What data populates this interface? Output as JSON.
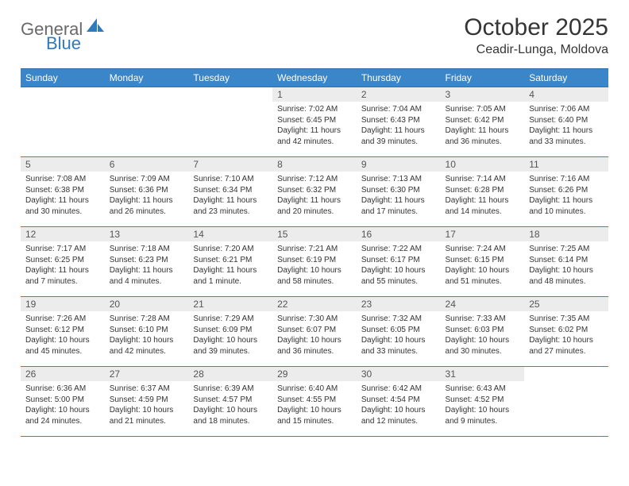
{
  "branding": {
    "logo_text_gray": "General",
    "logo_text_blue": "Blue",
    "logo_color_gray": "#6a6a6a",
    "logo_color_blue": "#2f79bd"
  },
  "header": {
    "title": "October 2025",
    "location": "Ceadir-Lunga, Moldova"
  },
  "style": {
    "header_bg": "#3a86c8",
    "header_fg": "#ffffff",
    "daynum_bg": "#ececec",
    "border_color": "#3a86c8",
    "body_font_size": 10,
    "header_font_size": 12,
    "title_font_size": 30,
    "location_font_size": 16
  },
  "weekdays": [
    "Sunday",
    "Monday",
    "Tuesday",
    "Wednesday",
    "Thursday",
    "Friday",
    "Saturday"
  ],
  "weeks": [
    [
      {
        "day": "",
        "sunrise": "",
        "sunset": "",
        "daylight": ""
      },
      {
        "day": "",
        "sunrise": "",
        "sunset": "",
        "daylight": ""
      },
      {
        "day": "",
        "sunrise": "",
        "sunset": "",
        "daylight": ""
      },
      {
        "day": "1",
        "sunrise": "Sunrise: 7:02 AM",
        "sunset": "Sunset: 6:45 PM",
        "daylight": "Daylight: 11 hours and 42 minutes."
      },
      {
        "day": "2",
        "sunrise": "Sunrise: 7:04 AM",
        "sunset": "Sunset: 6:43 PM",
        "daylight": "Daylight: 11 hours and 39 minutes."
      },
      {
        "day": "3",
        "sunrise": "Sunrise: 7:05 AM",
        "sunset": "Sunset: 6:42 PM",
        "daylight": "Daylight: 11 hours and 36 minutes."
      },
      {
        "day": "4",
        "sunrise": "Sunrise: 7:06 AM",
        "sunset": "Sunset: 6:40 PM",
        "daylight": "Daylight: 11 hours and 33 minutes."
      }
    ],
    [
      {
        "day": "5",
        "sunrise": "Sunrise: 7:08 AM",
        "sunset": "Sunset: 6:38 PM",
        "daylight": "Daylight: 11 hours and 30 minutes."
      },
      {
        "day": "6",
        "sunrise": "Sunrise: 7:09 AM",
        "sunset": "Sunset: 6:36 PM",
        "daylight": "Daylight: 11 hours and 26 minutes."
      },
      {
        "day": "7",
        "sunrise": "Sunrise: 7:10 AM",
        "sunset": "Sunset: 6:34 PM",
        "daylight": "Daylight: 11 hours and 23 minutes."
      },
      {
        "day": "8",
        "sunrise": "Sunrise: 7:12 AM",
        "sunset": "Sunset: 6:32 PM",
        "daylight": "Daylight: 11 hours and 20 minutes."
      },
      {
        "day": "9",
        "sunrise": "Sunrise: 7:13 AM",
        "sunset": "Sunset: 6:30 PM",
        "daylight": "Daylight: 11 hours and 17 minutes."
      },
      {
        "day": "10",
        "sunrise": "Sunrise: 7:14 AM",
        "sunset": "Sunset: 6:28 PM",
        "daylight": "Daylight: 11 hours and 14 minutes."
      },
      {
        "day": "11",
        "sunrise": "Sunrise: 7:16 AM",
        "sunset": "Sunset: 6:26 PM",
        "daylight": "Daylight: 11 hours and 10 minutes."
      }
    ],
    [
      {
        "day": "12",
        "sunrise": "Sunrise: 7:17 AM",
        "sunset": "Sunset: 6:25 PM",
        "daylight": "Daylight: 11 hours and 7 minutes."
      },
      {
        "day": "13",
        "sunrise": "Sunrise: 7:18 AM",
        "sunset": "Sunset: 6:23 PM",
        "daylight": "Daylight: 11 hours and 4 minutes."
      },
      {
        "day": "14",
        "sunrise": "Sunrise: 7:20 AM",
        "sunset": "Sunset: 6:21 PM",
        "daylight": "Daylight: 11 hours and 1 minute."
      },
      {
        "day": "15",
        "sunrise": "Sunrise: 7:21 AM",
        "sunset": "Sunset: 6:19 PM",
        "daylight": "Daylight: 10 hours and 58 minutes."
      },
      {
        "day": "16",
        "sunrise": "Sunrise: 7:22 AM",
        "sunset": "Sunset: 6:17 PM",
        "daylight": "Daylight: 10 hours and 55 minutes."
      },
      {
        "day": "17",
        "sunrise": "Sunrise: 7:24 AM",
        "sunset": "Sunset: 6:15 PM",
        "daylight": "Daylight: 10 hours and 51 minutes."
      },
      {
        "day": "18",
        "sunrise": "Sunrise: 7:25 AM",
        "sunset": "Sunset: 6:14 PM",
        "daylight": "Daylight: 10 hours and 48 minutes."
      }
    ],
    [
      {
        "day": "19",
        "sunrise": "Sunrise: 7:26 AM",
        "sunset": "Sunset: 6:12 PM",
        "daylight": "Daylight: 10 hours and 45 minutes."
      },
      {
        "day": "20",
        "sunrise": "Sunrise: 7:28 AM",
        "sunset": "Sunset: 6:10 PM",
        "daylight": "Daylight: 10 hours and 42 minutes."
      },
      {
        "day": "21",
        "sunrise": "Sunrise: 7:29 AM",
        "sunset": "Sunset: 6:09 PM",
        "daylight": "Daylight: 10 hours and 39 minutes."
      },
      {
        "day": "22",
        "sunrise": "Sunrise: 7:30 AM",
        "sunset": "Sunset: 6:07 PM",
        "daylight": "Daylight: 10 hours and 36 minutes."
      },
      {
        "day": "23",
        "sunrise": "Sunrise: 7:32 AM",
        "sunset": "Sunset: 6:05 PM",
        "daylight": "Daylight: 10 hours and 33 minutes."
      },
      {
        "day": "24",
        "sunrise": "Sunrise: 7:33 AM",
        "sunset": "Sunset: 6:03 PM",
        "daylight": "Daylight: 10 hours and 30 minutes."
      },
      {
        "day": "25",
        "sunrise": "Sunrise: 7:35 AM",
        "sunset": "Sunset: 6:02 PM",
        "daylight": "Daylight: 10 hours and 27 minutes."
      }
    ],
    [
      {
        "day": "26",
        "sunrise": "Sunrise: 6:36 AM",
        "sunset": "Sunset: 5:00 PM",
        "daylight": "Daylight: 10 hours and 24 minutes."
      },
      {
        "day": "27",
        "sunrise": "Sunrise: 6:37 AM",
        "sunset": "Sunset: 4:59 PM",
        "daylight": "Daylight: 10 hours and 21 minutes."
      },
      {
        "day": "28",
        "sunrise": "Sunrise: 6:39 AM",
        "sunset": "Sunset: 4:57 PM",
        "daylight": "Daylight: 10 hours and 18 minutes."
      },
      {
        "day": "29",
        "sunrise": "Sunrise: 6:40 AM",
        "sunset": "Sunset: 4:55 PM",
        "daylight": "Daylight: 10 hours and 15 minutes."
      },
      {
        "day": "30",
        "sunrise": "Sunrise: 6:42 AM",
        "sunset": "Sunset: 4:54 PM",
        "daylight": "Daylight: 10 hours and 12 minutes."
      },
      {
        "day": "31",
        "sunrise": "Sunrise: 6:43 AM",
        "sunset": "Sunset: 4:52 PM",
        "daylight": "Daylight: 10 hours and 9 minutes."
      },
      {
        "day": "",
        "sunrise": "",
        "sunset": "",
        "daylight": ""
      }
    ]
  ]
}
